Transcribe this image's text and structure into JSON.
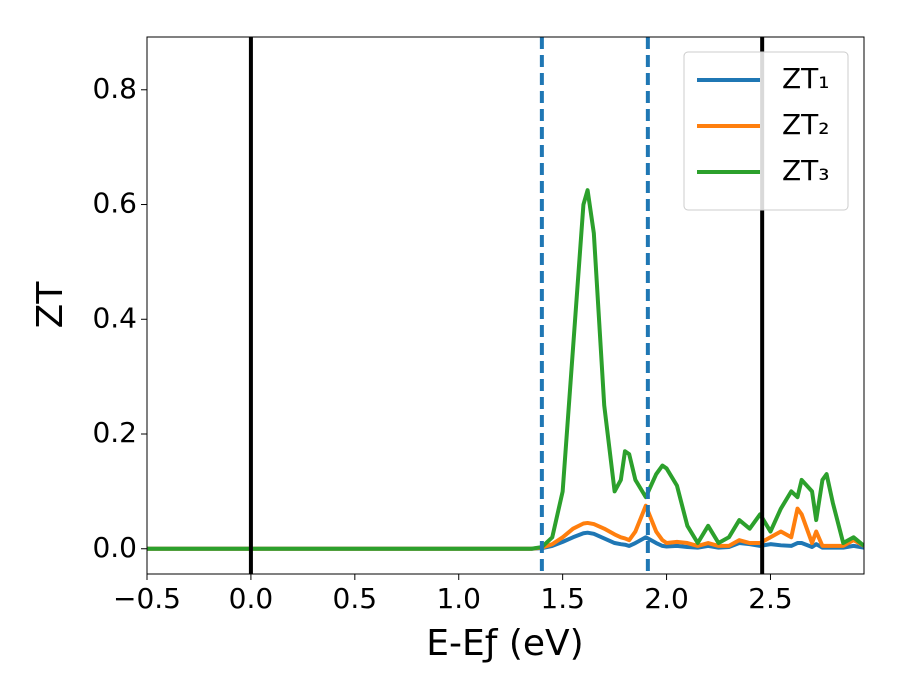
{
  "chart_data": {
    "type": "line",
    "xlabel": "E-Eƒ (eV)",
    "ylabel": "ZT",
    "x": [
      -0.5,
      1.35,
      1.4,
      1.45,
      1.5,
      1.55,
      1.6,
      1.62,
      1.65,
      1.7,
      1.75,
      1.78,
      1.8,
      1.82,
      1.85,
      1.9,
      1.95,
      1.98,
      2.0,
      2.05,
      2.1,
      2.15,
      2.2,
      2.25,
      2.3,
      2.35,
      2.4,
      2.45,
      2.5,
      2.55,
      2.6,
      2.63,
      2.65,
      2.7,
      2.72,
      2.75,
      2.77,
      2.8,
      2.85,
      2.9,
      2.95
    ],
    "series": [
      {
        "name": "ZT₁",
        "color": "#1f77b4",
        "values": [
          0,
          0,
          0.001,
          0.005,
          0.012,
          0.02,
          0.027,
          0.028,
          0.026,
          0.018,
          0.01,
          0.008,
          0.007,
          0.005,
          0.01,
          0.02,
          0.01,
          0.005,
          0.004,
          0.005,
          0.003,
          0.002,
          0.005,
          0.002,
          0.003,
          0.01,
          0.008,
          0.005,
          0.008,
          0.006,
          0.005,
          0.01,
          0.01,
          0.003,
          0.008,
          0.002,
          0.002,
          0.002,
          0.002,
          0.005,
          0.002
        ]
      },
      {
        "name": "ZT₂",
        "color": "#ff7f0e",
        "values": [
          0,
          0,
          0.002,
          0.008,
          0.02,
          0.035,
          0.044,
          0.045,
          0.043,
          0.035,
          0.025,
          0.02,
          0.018,
          0.015,
          0.03,
          0.075,
          0.03,
          0.015,
          0.01,
          0.012,
          0.01,
          0.005,
          0.01,
          0.005,
          0.005,
          0.015,
          0.01,
          0.01,
          0.02,
          0.03,
          0.02,
          0.07,
          0.06,
          0.01,
          0.03,
          0.005,
          0.005,
          0.005,
          0.005,
          0.015,
          0.005
        ]
      },
      {
        "name": "ZT₃",
        "color": "#2ca02c",
        "values": [
          0,
          0,
          0.003,
          0.02,
          0.1,
          0.35,
          0.6,
          0.625,
          0.55,
          0.25,
          0.1,
          0.12,
          0.17,
          0.165,
          0.12,
          0.09,
          0.13,
          0.145,
          0.14,
          0.11,
          0.04,
          0.01,
          0.04,
          0.01,
          0.02,
          0.05,
          0.035,
          0.06,
          0.03,
          0.07,
          0.1,
          0.09,
          0.12,
          0.1,
          0.05,
          0.12,
          0.13,
          0.08,
          0.01,
          0.02,
          0.005
        ]
      }
    ],
    "vlines": [
      {
        "x": 0,
        "color": "#000000",
        "style": "solid"
      },
      {
        "x": 1.4,
        "color": "#1f77b4",
        "style": "dashed"
      },
      {
        "x": 1.91,
        "color": "#1f77b4",
        "style": "dashed"
      },
      {
        "x": 2.46,
        "color": "#000000",
        "style": "solid"
      }
    ],
    "xlim": [
      -0.5,
      2.95
    ],
    "ylim": [
      -0.044,
      0.892
    ],
    "xticks": [
      {
        "value": -0.5,
        "label": "−0.5"
      },
      {
        "value": 0,
        "label": "0.0"
      },
      0.5,
      {
        "value": 1,
        "label": "1.0"
      },
      1.5,
      {
        "value": 2,
        "label": "2.0"
      },
      2.5
    ],
    "yticks": [
      {
        "value": 0,
        "label": "0.0"
      },
      0.2,
      0.4,
      0.6,
      0.8
    ],
    "legend": "upper right",
    "grid": false
  }
}
